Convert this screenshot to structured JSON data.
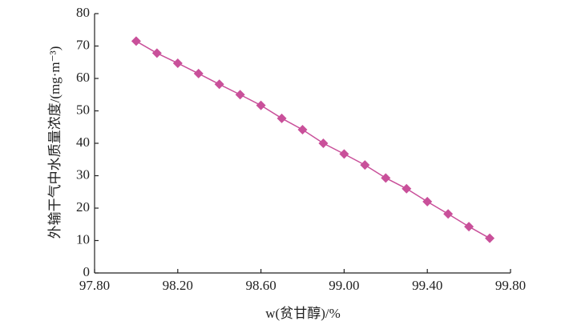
{
  "chart_data": {
    "type": "line",
    "x_label": "w(贫甘醇)/%",
    "y_label": "外输干气中水质量浓度/(mg·m⁻³)",
    "x": [
      98.0,
      98.1,
      98.2,
      98.3,
      98.4,
      98.5,
      98.6,
      98.7,
      98.8,
      98.9,
      99.0,
      99.1,
      99.2,
      99.3,
      99.4,
      99.5,
      99.6,
      99.7
    ],
    "series": [
      {
        "color": "#c9509a",
        "values": [
          71.5,
          67.8,
          64.7,
          61.5,
          58.2,
          55.0,
          51.7,
          47.7,
          44.2,
          40.0,
          36.7,
          33.3,
          29.3,
          26.0,
          22.0,
          18.2,
          14.3,
          10.7
        ]
      }
    ],
    "xlim": [
      97.8,
      99.8
    ],
    "xticks": [
      {
        "value": 97.8,
        "label": "97.80"
      },
      {
        "value": 98.2,
        "label": "98.20"
      },
      {
        "value": 98.6,
        "label": "98.60"
      },
      {
        "value": 99.0,
        "label": "99.00"
      },
      {
        "value": 99.4,
        "label": "99.40"
      },
      {
        "value": 99.8,
        "label": "99.80"
      }
    ],
    "ylim": [
      0,
      80
    ],
    "yticks": [
      0,
      10,
      20,
      30,
      40,
      50,
      60,
      70,
      80
    ],
    "grid": false
  }
}
